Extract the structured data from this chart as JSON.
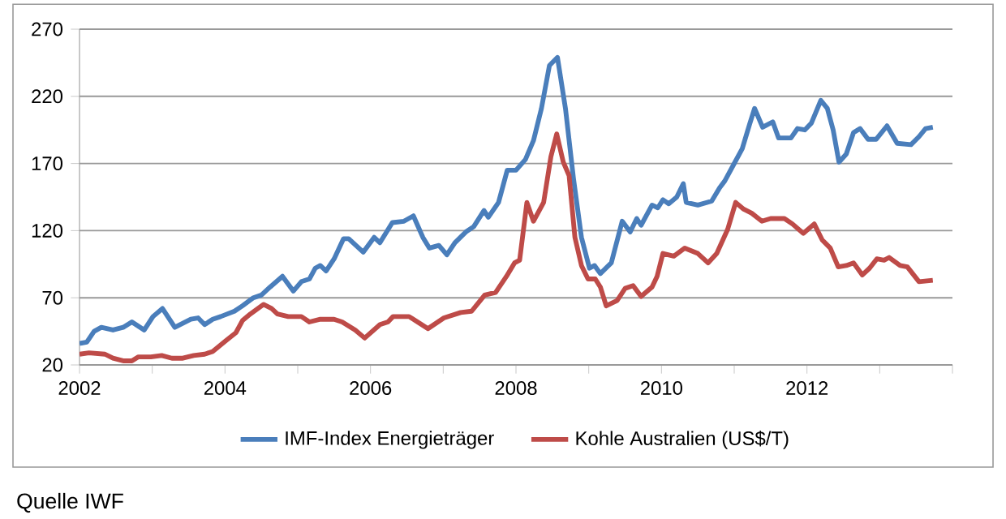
{
  "chart_data": {
    "type": "line",
    "xlim": [
      2002,
      2014
    ],
    "xticks": [
      2002,
      {
        "value": 2003,
        "label": null
      },
      2004,
      {
        "value": 2005,
        "label": null
      },
      2006,
      {
        "value": 2007,
        "label": null
      },
      2008,
      {
        "value": 2009,
        "label": null
      },
      2010,
      {
        "value": 2011,
        "label": null
      },
      2012,
      {
        "value": 2013,
        "label": null
      },
      {
        "value": 2014,
        "label": null
      }
    ],
    "ylim": [
      20,
      270
    ],
    "yticks": [
      20,
      70,
      120,
      170,
      220,
      270
    ],
    "grid": "y",
    "legend": "bottom",
    "marker": "none",
    "line_style": "solid",
    "annotations": [
      "Quelle IWF"
    ],
    "series": [
      {
        "name": "IMF-Index Energieträger",
        "color": "#4a7ebb",
        "x": [
          2002.0,
          2002.1,
          2002.2,
          2002.3,
          2002.46,
          2002.6,
          2002.72,
          2002.89,
          2003.01,
          2003.14,
          2003.31,
          2003.53,
          2003.63,
          2003.72,
          2003.83,
          2003.94,
          2004.13,
          2004.24,
          2004.39,
          2004.5,
          2004.62,
          2004.79,
          2004.94,
          2005.05,
          2005.16,
          2005.24,
          2005.31,
          2005.39,
          2005.5,
          2005.63,
          2005.7,
          2005.9,
          2006.05,
          2006.13,
          2006.3,
          2006.46,
          2006.59,
          2006.72,
          2006.81,
          2006.94,
          2007.05,
          2007.16,
          2007.31,
          2007.42,
          2007.56,
          2007.62,
          2007.76,
          2007.88,
          2008.0,
          2008.13,
          2008.24,
          2008.35,
          2008.46,
          2008.57,
          2008.68,
          2008.79,
          2008.9,
          2009.01,
          2009.08,
          2009.16,
          2009.31,
          2009.46,
          2009.57,
          2009.66,
          2009.72,
          2009.87,
          2009.95,
          2010.02,
          2010.1,
          2010.21,
          2010.3,
          2010.34,
          2010.5,
          2010.69,
          2010.8,
          2010.87,
          2010.99,
          2011.11,
          2011.21,
          2011.28,
          2011.39,
          2011.53,
          2011.61,
          2011.78,
          2011.87,
          2011.97,
          2012.06,
          2012.19,
          2012.28,
          2012.36,
          2012.44,
          2012.54,
          2012.64,
          2012.73,
          2012.84,
          2012.95,
          2013.1,
          2013.24,
          2013.43,
          2013.54,
          2013.63,
          2013.73
        ],
        "values": [
          36,
          37,
          45,
          48,
          46,
          48,
          52,
          46,
          56,
          62,
          48,
          54,
          55,
          50,
          54,
          56,
          60,
          64,
          70,
          72,
          78,
          86,
          75,
          82,
          84,
          92,
          94,
          90,
          99,
          114,
          114,
          104,
          115,
          111,
          126,
          127,
          131,
          115,
          107,
          109,
          102,
          111,
          119,
          123,
          135,
          130,
          141,
          165,
          165,
          173,
          187,
          211,
          243,
          249,
          211,
          159,
          115,
          92,
          94,
          88,
          96,
          127,
          119,
          129,
          124,
          139,
          137,
          143,
          140,
          145,
          155,
          141,
          139,
          142,
          152,
          157,
          169,
          181,
          199,
          211,
          197,
          201,
          189,
          189,
          196,
          195,
          200,
          217,
          211,
          195,
          171,
          177,
          193,
          196,
          188,
          188,
          198,
          185,
          184,
          190,
          196,
          197
        ]
      },
      {
        "name": "Kohle Australien (US$/T)",
        "color": "#be4b48",
        "x": [
          2002.0,
          2002.13,
          2002.35,
          2002.46,
          2002.61,
          2002.72,
          2002.81,
          2002.98,
          2003.13,
          2003.27,
          2003.42,
          2003.57,
          2003.72,
          2003.83,
          2004.01,
          2004.15,
          2004.24,
          2004.35,
          2004.53,
          2004.64,
          2004.72,
          2004.87,
          2005.05,
          2005.16,
          2005.31,
          2005.5,
          2005.61,
          2005.79,
          2005.92,
          2006.13,
          2006.24,
          2006.31,
          2006.53,
          2006.79,
          2007.01,
          2007.24,
          2007.39,
          2007.57,
          2007.72,
          2007.87,
          2007.98,
          2008.05,
          2008.15,
          2008.24,
          2008.38,
          2008.48,
          2008.56,
          2008.65,
          2008.73,
          2008.81,
          2008.9,
          2008.99,
          2009.09,
          2009.16,
          2009.24,
          2009.39,
          2009.5,
          2009.61,
          2009.72,
          2009.87,
          2009.94,
          2010.02,
          2010.17,
          2010.32,
          2010.5,
          2010.64,
          2010.76,
          2010.91,
          2011.02,
          2011.13,
          2011.24,
          2011.38,
          2011.5,
          2011.69,
          2011.8,
          2011.95,
          2012.1,
          2012.21,
          2012.32,
          2012.43,
          2012.54,
          2012.64,
          2012.76,
          2012.86,
          2012.96,
          2013.06,
          2013.13,
          2013.28,
          2013.38,
          2013.54,
          2013.73
        ],
        "values": [
          28,
          29,
          28,
          25,
          23,
          23,
          26,
          26,
          27,
          25,
          25,
          27,
          28,
          30,
          38,
          44,
          53,
          58,
          65,
          62,
          58,
          56,
          56,
          52,
          54,
          54,
          52,
          46,
          40,
          50,
          52,
          56,
          56,
          47,
          55,
          59,
          60,
          72,
          74,
          86,
          96,
          98,
          141,
          127,
          141,
          175,
          192,
          171,
          161,
          115,
          94,
          84,
          84,
          78,
          64,
          68,
          77,
          79,
          71,
          78,
          86,
          103,
          101,
          107,
          103,
          96,
          103,
          121,
          141,
          136,
          133,
          127,
          129,
          129,
          125,
          118,
          125,
          113,
          107,
          93,
          94,
          96,
          87,
          92,
          99,
          98,
          100,
          94,
          93,
          82,
          83
        ]
      }
    ]
  }
}
